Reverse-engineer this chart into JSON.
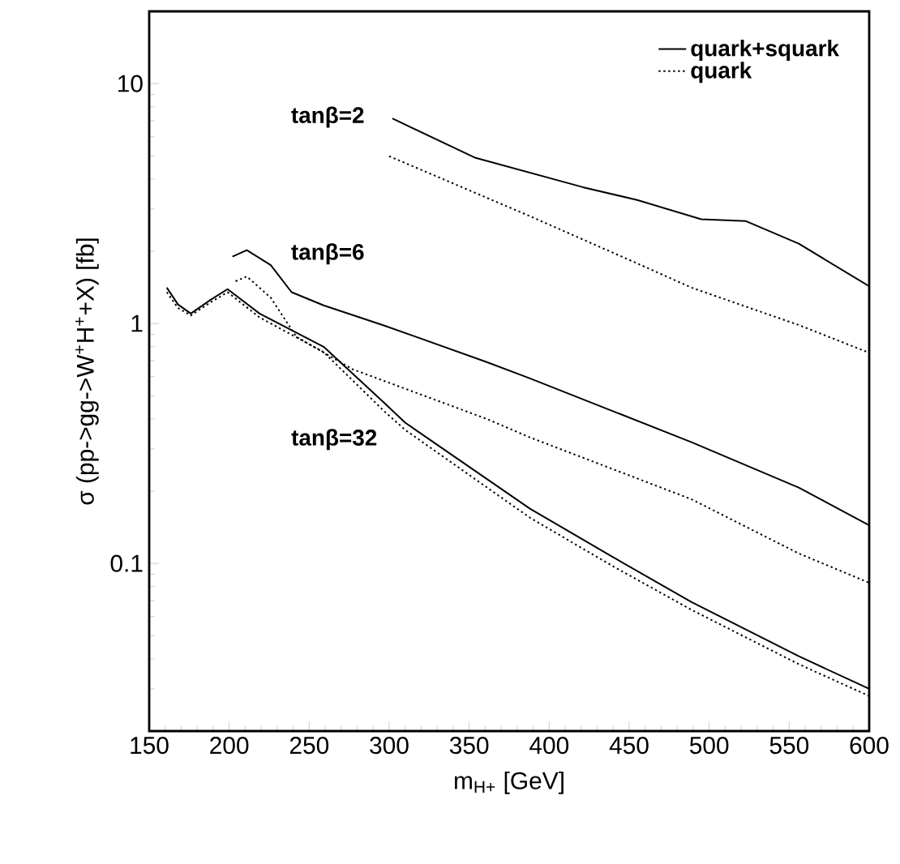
{
  "chart_data": {
    "type": "line",
    "xlabel": "m$_{H+}$ [GeV]",
    "ylabel": "σ (pp->gg->W$^{+}$H$^{+}$+X) [fb]",
    "log": "y",
    "legend": "top right",
    "grid": false,
    "xlim": [
      150,
      600
    ],
    "ylim": [
      0.02,
      20
    ],
    "xticks": [
      150,
      {
        "value": 160,
        "label": null
      },
      {
        "value": 170,
        "label": null
      },
      {
        "value": 180,
        "label": null
      },
      {
        "value": 190,
        "label": null
      },
      200,
      {
        "value": 210,
        "label": null
      },
      {
        "value": 220,
        "label": null
      },
      {
        "value": 230,
        "label": null
      },
      {
        "value": 240,
        "label": null
      },
      250,
      {
        "value": 260,
        "label": null
      },
      {
        "value": 270,
        "label": null
      },
      {
        "value": 280,
        "label": null
      },
      {
        "value": 290,
        "label": null
      },
      300,
      {
        "value": 310,
        "label": null
      },
      {
        "value": 320,
        "label": null
      },
      {
        "value": 330,
        "label": null
      },
      {
        "value": 340,
        "label": null
      },
      350,
      {
        "value": 360,
        "label": null
      },
      {
        "value": 370,
        "label": null
      },
      {
        "value": 380,
        "label": null
      },
      {
        "value": 390,
        "label": null
      },
      400,
      {
        "value": 410,
        "label": null
      },
      {
        "value": 420,
        "label": null
      },
      {
        "value": 430,
        "label": null
      },
      {
        "value": 440,
        "label": null
      },
      450,
      {
        "value": 460,
        "label": null
      },
      {
        "value": 470,
        "label": null
      },
      {
        "value": 480,
        "label": null
      },
      {
        "value": 490,
        "label": null
      },
      500,
      {
        "value": 510,
        "label": null
      },
      {
        "value": 520,
        "label": null
      },
      {
        "value": 530,
        "label": null
      },
      {
        "value": 540,
        "label": null
      },
      550,
      {
        "value": 560,
        "label": null
      },
      {
        "value": 570,
        "label": null
      },
      {
        "value": 580,
        "label": null
      },
      {
        "value": 590,
        "label": null
      },
      600
    ],
    "yticks": [
      {
        "value": 0.03,
        "label": null
      },
      {
        "value": 0.04,
        "label": null
      },
      {
        "value": 0.05,
        "label": null
      },
      {
        "value": 0.06,
        "label": null
      },
      {
        "value": 0.07,
        "label": null
      },
      {
        "value": 0.08,
        "label": null
      },
      {
        "value": 0.09,
        "label": null
      },
      0.1,
      {
        "value": 0.2,
        "label": null
      },
      {
        "value": 0.3,
        "label": null
      },
      {
        "value": 0.4,
        "label": null
      },
      {
        "value": 0.5,
        "label": null
      },
      {
        "value": 0.6,
        "label": null
      },
      {
        "value": 0.7,
        "label": null
      },
      {
        "value": 0.8,
        "label": null
      },
      {
        "value": 0.9,
        "label": null
      },
      1,
      {
        "value": 2,
        "label": null
      },
      {
        "value": 3,
        "label": null
      },
      {
        "value": 4,
        "label": null
      },
      {
        "value": 5,
        "label": null
      },
      {
        "value": 6,
        "label": null
      },
      {
        "value": 7,
        "label": null
      },
      {
        "value": 8,
        "label": null
      },
      {
        "value": 9,
        "label": null
      },
      10
    ],
    "marker": "none",
    "series": [
      {
        "name": "quark+squark",
        "color": "#000000",
        "line_style": "solid",
        "x": [
          302,
          354,
          421,
          455,
          495,
          523,
          556,
          600
        ],
        "values": [
          7.15,
          4.9,
          3.7,
          3.27,
          2.72,
          2.67,
          2.15,
          1.43
        ]
      },
      {
        "name": "quark",
        "color": "#000000",
        "line_style": "dotted",
        "x": [
          300,
          388,
          455,
          489,
          556,
          600
        ],
        "values": [
          4.98,
          2.8,
          1.78,
          1.41,
          0.985,
          0.755
        ]
      },
      {
        "color": "#000000",
        "line_style": "solid",
        "x": [
          202,
          211,
          226,
          239,
          259,
          297,
          361,
          388,
          489,
          556,
          600
        ],
        "values": [
          1.9,
          2.02,
          1.75,
          1.35,
          1.19,
          0.98,
          0.69,
          0.59,
          0.32,
          0.207,
          0.144
        ]
      },
      {
        "color": "#000000",
        "line_style": "dotted",
        "x": [
          204,
          211,
          226,
          242,
          277,
          361,
          388,
          489,
          556,
          600
        ],
        "values": [
          1.5,
          1.57,
          1.28,
          0.88,
          0.645,
          0.4,
          0.335,
          0.185,
          0.11,
          0.083
        ]
      },
      {
        "color": "#000000",
        "line_style": "solid",
        "x": [
          161,
          168,
          176,
          188,
          199,
          219,
          259,
          297,
          310,
          388,
          439,
          489,
          556,
          600
        ],
        "values": [
          1.41,
          1.2,
          1.1,
          1.25,
          1.39,
          1.1,
          0.8,
          0.466,
          0.386,
          0.169,
          0.107,
          0.069,
          0.041,
          0.03
        ]
      },
      {
        "color": "#000000",
        "line_style": "dotted",
        "x": [
          161,
          168,
          176,
          188,
          199,
          219,
          259,
          297,
          310,
          388,
          439,
          489,
          556,
          600
        ],
        "values": [
          1.35,
          1.16,
          1.08,
          1.22,
          1.35,
          1.06,
          0.76,
          0.43,
          0.36,
          0.155,
          0.098,
          0.064,
          0.038,
          0.028
        ]
      }
    ],
    "annotations": [
      "tanβ=2",
      "tanβ=6",
      "tanβ=32"
    ]
  }
}
